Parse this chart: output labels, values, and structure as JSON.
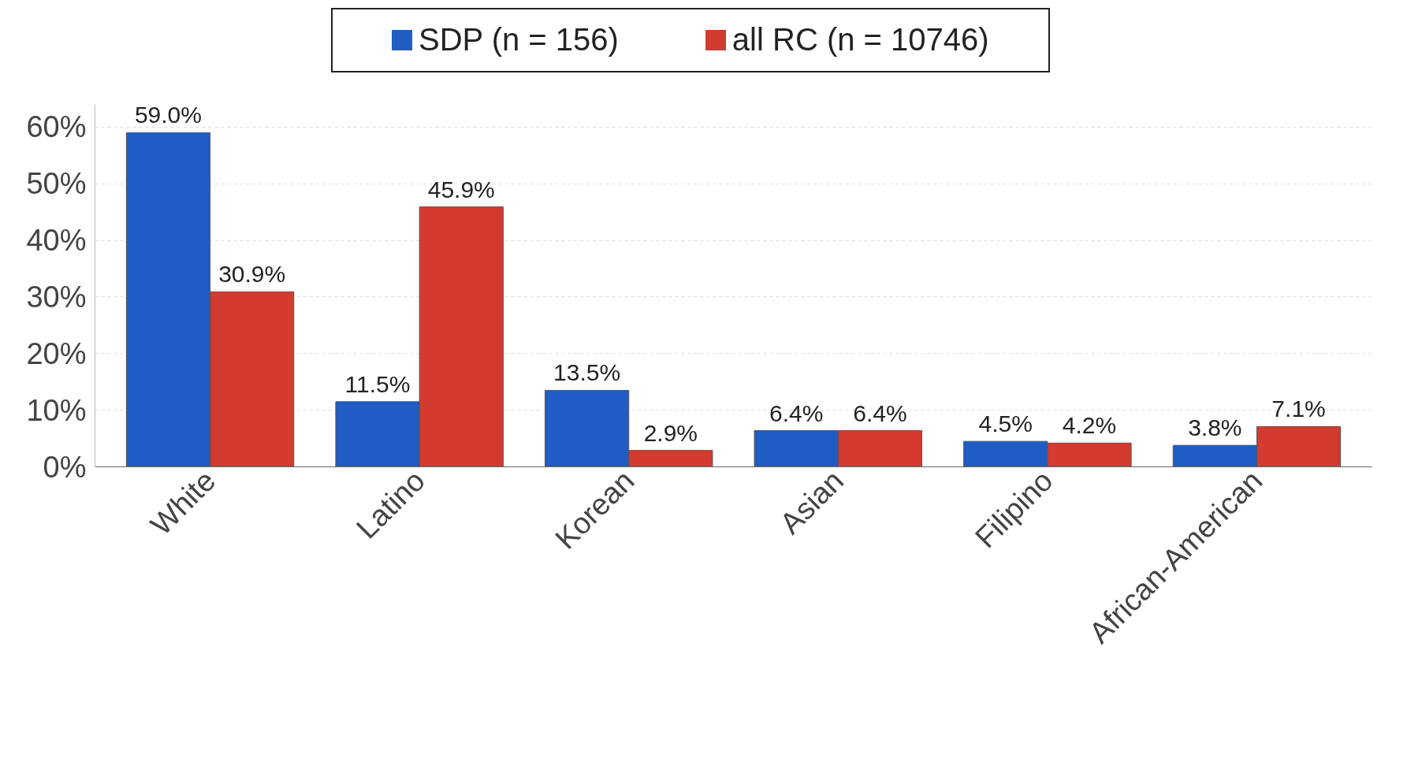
{
  "chart_data": {
    "type": "bar",
    "categories": [
      "White",
      "Latino",
      "Korean",
      "Asian",
      "Filipino",
      "African-American"
    ],
    "series": [
      {
        "name": "SDP (n = 156)",
        "color": "#1f5cc4",
        "values": [
          59.0,
          11.5,
          13.5,
          6.4,
          4.5,
          3.8
        ],
        "value_labels": [
          "59.0%",
          "11.5%",
          "13.5%",
          "6.4%",
          "4.5%",
          "3.8%"
        ]
      },
      {
        "name": "all RC (n = 10746)",
        "color": "#d33a30",
        "values": [
          30.9,
          45.9,
          2.9,
          6.4,
          4.2,
          7.1
        ],
        "value_labels": [
          "30.9%",
          "45.9%",
          "2.9%",
          "6.4%",
          "4.2%",
          "7.1%"
        ]
      }
    ],
    "ylim": [
      0,
      64
    ],
    "yticks": [
      {
        "value": 0,
        "label": "0%"
      },
      {
        "value": 10,
        "label": "10%"
      },
      {
        "value": 20,
        "label": "20%"
      },
      {
        "value": 30,
        "label": "30%"
      },
      {
        "value": 40,
        "label": "40%"
      },
      {
        "value": 50,
        "label": "50%"
      },
      {
        "value": 60,
        "label": "60%"
      }
    ],
    "grid": "y",
    "legend": "top"
  }
}
